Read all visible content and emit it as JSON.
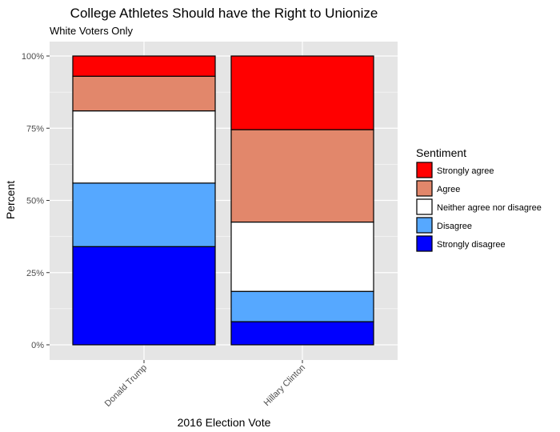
{
  "chart_data": {
    "type": "bar",
    "stacked": true,
    "title": "College Athletes Should have the Right to Unionize",
    "subtitle": "White Voters Only",
    "xlabel": "2016 Election Vote",
    "ylabel": "Percent",
    "ylim": [
      0,
      100
    ],
    "yticks": [
      0,
      25,
      50,
      75,
      100
    ],
    "ytick_labels": [
      "0%",
      "25%",
      "50%",
      "75%",
      "100%"
    ],
    "grid": true,
    "legend_title": "Sentiment",
    "legend_position": "right",
    "categories": [
      "Donald Trump",
      "Hillary Clinton"
    ],
    "series": [
      {
        "name": "Strongly agree",
        "color": "#ff0000",
        "values": [
          7,
          25.5
        ]
      },
      {
        "name": "Agree",
        "color": "#e2876b",
        "values": [
          12,
          32
        ]
      },
      {
        "name": "Neither agree nor disagree",
        "color": "#ffffff",
        "values": [
          25,
          24
        ]
      },
      {
        "name": "Disagree",
        "color": "#56a8ff",
        "values": [
          22,
          10.5
        ]
      },
      {
        "name": "Strongly disagree",
        "color": "#0000ff",
        "values": [
          34,
          8
        ]
      }
    ],
    "colors": {
      "panel_background": "#e5e5e5",
      "grid": "#ffffff",
      "bar_outline": "#000000"
    }
  }
}
